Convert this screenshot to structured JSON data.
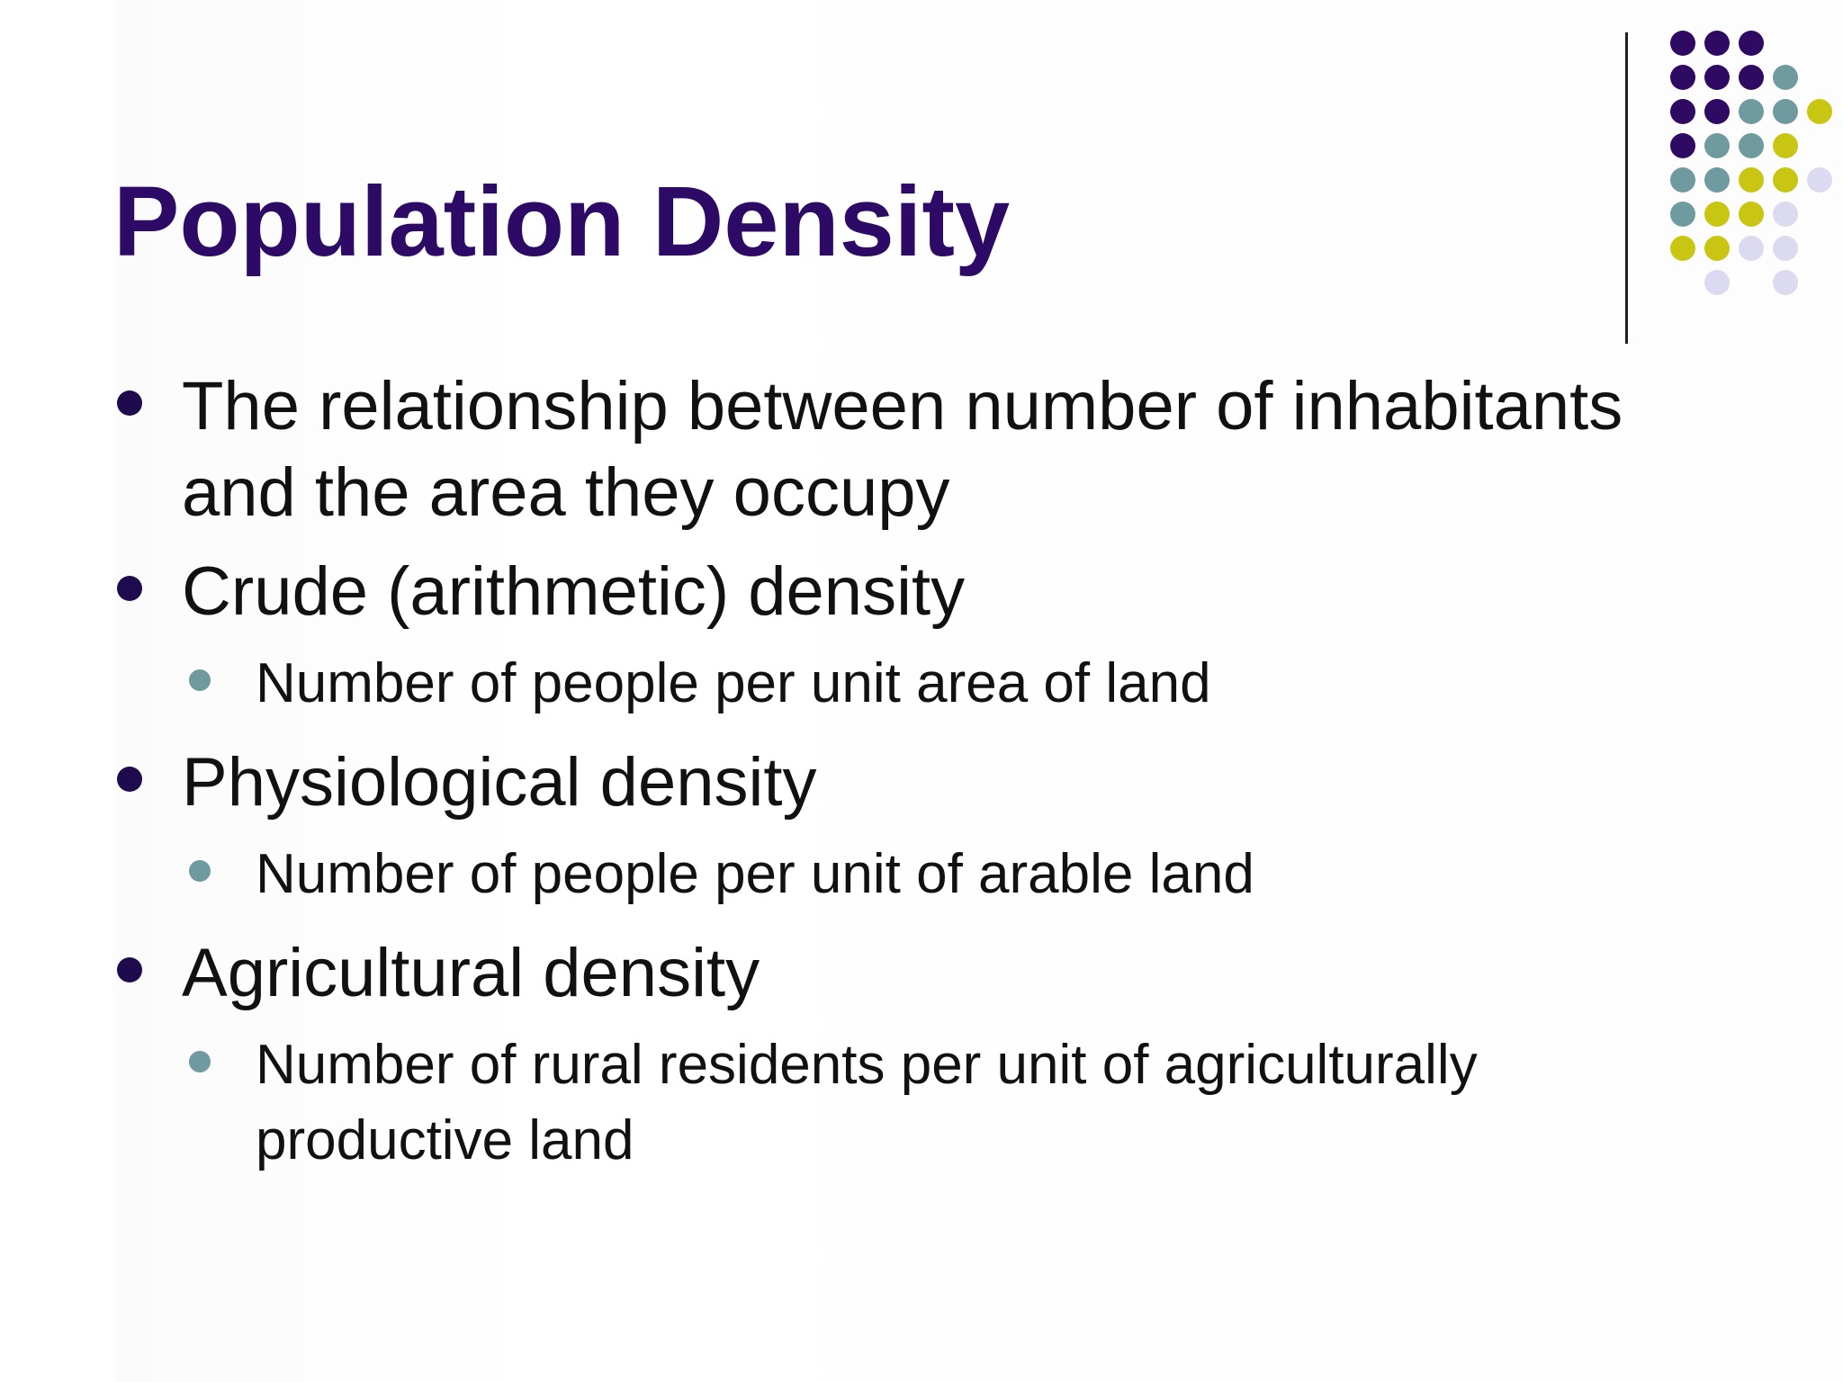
{
  "slide": {
    "title": "Population Density",
    "bullets": [
      {
        "text": "The relationship between number of inhabitants and the area they occupy",
        "level": 1
      },
      {
        "text": "Crude (arithmetic) density",
        "level": 1
      },
      {
        "text": "Number of people per unit area of land",
        "level": 2
      },
      {
        "text": "Physiological density",
        "level": 1
      },
      {
        "text": "Number of people per unit of arable land",
        "level": 2
      },
      {
        "text": "Agricultural density",
        "level": 1
      },
      {
        "text": "Number of rural residents per unit of agriculturally productive land",
        "level": 2
      }
    ]
  },
  "colors": {
    "title": "#2c0a66",
    "body_text": "#111111",
    "bullet_level1": "#1d0b4e",
    "bullet_level2": "#6f9aa0",
    "dot_purple": "#2f0a63",
    "dot_teal": "#6f9aa0",
    "dot_olive": "#c9c513",
    "dot_lavender": "#dcdaf0"
  }
}
